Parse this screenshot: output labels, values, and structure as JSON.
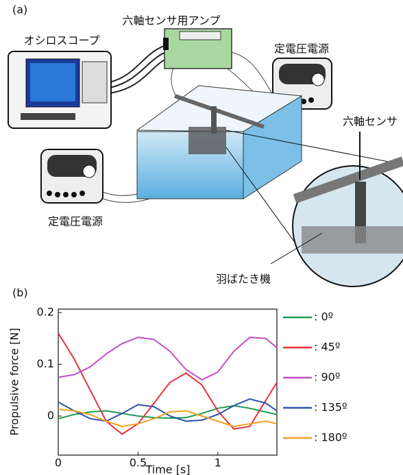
{
  "panel_a": {
    "label": "(a)",
    "amplifier": "六軸センサ用アンプ",
    "oscilloscope": "オシロスコープ",
    "power_supply_right": "定電圧電源",
    "sensor": "六軸センサ",
    "power_supply_left": "定電圧電源",
    "flapper": "羽ばたき機"
  },
  "panel_b": {
    "label": "(b)"
  },
  "chart_data": {
    "type": "line",
    "xlabel": "Time [s]",
    "ylabel": "Propulsive force [N]",
    "x": [
      0,
      0.1,
      0.2,
      0.3,
      0.4,
      0.5,
      0.6,
      0.7,
      0.8,
      0.9,
      1.0,
      1.1,
      1.2,
      1.3,
      1.37
    ],
    "xlim": [
      0,
      1.37
    ],
    "xticks": [
      0,
      0.5,
      1
    ],
    "ylim": [
      -0.0755,
      0.2066
    ],
    "yticks": [
      0,
      0.1,
      0.2
    ],
    "series": [
      {
        "name": ": 0º",
        "color": "#1a9a50",
        "values": [
          -0.005,
          0.003,
          0.008,
          0.01,
          0.005,
          0.0,
          -0.003,
          -0.004,
          -0.003,
          0.005,
          0.015,
          0.02,
          0.015,
          0.008,
          0.003
        ]
      },
      {
        "name": ": 45º",
        "color": "#e8303a",
        "values": [
          0.16,
          0.11,
          0.05,
          -0.01,
          -0.035,
          -0.015,
          0.025,
          0.065,
          0.083,
          0.06,
          0.01,
          -0.025,
          -0.02,
          0.03,
          0.065
        ]
      },
      {
        "name": ": 90º",
        "color": "#c050c0",
        "values": [
          0.075,
          0.08,
          0.095,
          0.12,
          0.14,
          0.152,
          0.148,
          0.125,
          0.09,
          0.07,
          0.085,
          0.125,
          0.152,
          0.15,
          0.132
        ]
      },
      {
        "name": ": 135º",
        "color": "#3050b0",
        "values": [
          0.027,
          0.01,
          -0.005,
          -0.01,
          0.005,
          0.022,
          0.018,
          0.0,
          -0.01,
          -0.008,
          0.003,
          0.02,
          0.033,
          0.025,
          0.01
        ]
      },
      {
        "name": ": 180º",
        "color": "#f0a020",
        "values": [
          0.013,
          0.01,
          0.003,
          -0.01,
          -0.02,
          -0.015,
          -0.005,
          0.008,
          0.01,
          0.0,
          -0.01,
          -0.02,
          -0.015,
          -0.01,
          -0.015
        ]
      }
    ]
  }
}
